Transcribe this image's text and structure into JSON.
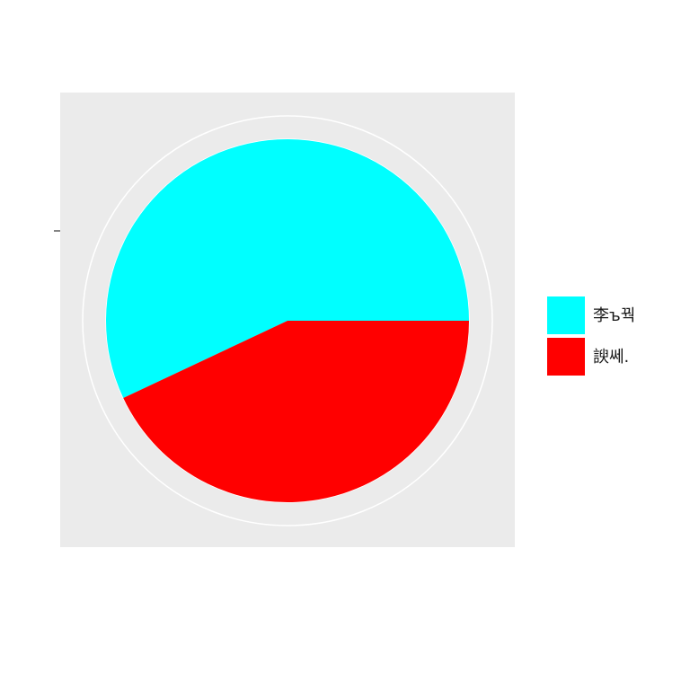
{
  "chart_data": {
    "type": "pie",
    "title": "",
    "xlabel": "",
    "ylabel": "",
    "categories": [
      "李ъ꿕",
      "諛쎄."
    ],
    "values": [
      57,
      43
    ],
    "colors": [
      "#00FFFF",
      "#FF0000"
    ],
    "legend_position": "right",
    "panel_background": "#EBEBEB",
    "grid": true
  }
}
